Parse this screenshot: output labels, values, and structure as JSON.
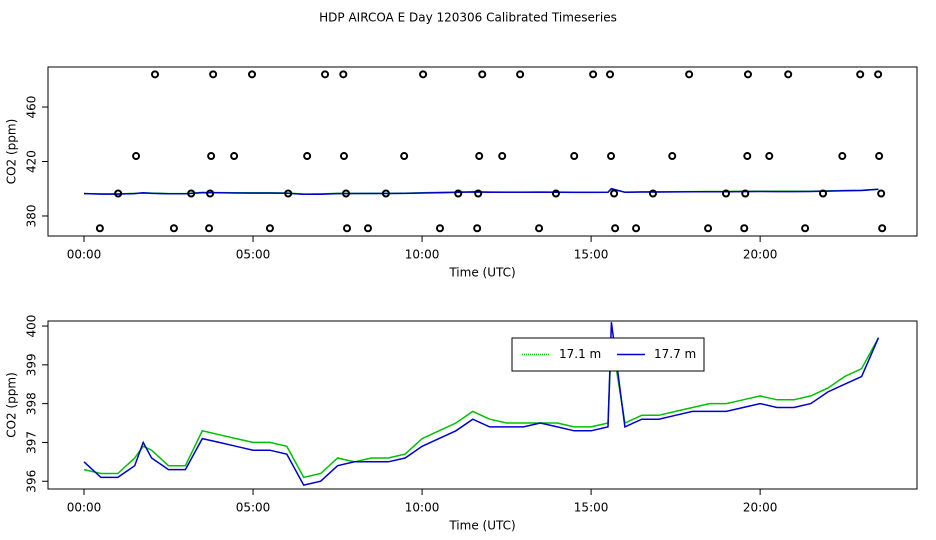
{
  "chart_data": [
    {
      "type": "scatter",
      "title": "HDP AIRCOA E  Day 120306  Calibrated Timeseries",
      "xlabel": "Time (UTC)",
      "ylabel": "CO2 (ppm)",
      "xlim": [
        -1.065,
        24.64
      ],
      "xticks": [
        {
          "value": 0,
          "label": "00:00"
        },
        {
          "value": 5,
          "label": "05:00"
        },
        {
          "value": 10,
          "label": "10:00"
        },
        {
          "value": 15,
          "label": "15:00"
        },
        {
          "value": 20,
          "label": "20:00"
        }
      ],
      "ylim": [
        365.3,
        489.4
      ],
      "yticks": [
        380,
        420,
        460
      ],
      "points": {
        "color": "#000000",
        "x": [
          2.1,
          3.82,
          4.97,
          7.13,
          7.67,
          10.03,
          11.78,
          12.9,
          15.06,
          15.56,
          17.9,
          19.64,
          20.83,
          22.96,
          23.49,
          1.54,
          3.76,
          4.44,
          6.6,
          7.69,
          9.47,
          11.69,
          12.37,
          14.5,
          15.59,
          17.4,
          19.62,
          20.27,
          22.43,
          23.52,
          1.01,
          3.17,
          3.73,
          6.04,
          7.75,
          8.93,
          11.07,
          11.66,
          13.96,
          15.68,
          16.83,
          18.99,
          19.56,
          21.86,
          23.58,
          0.47,
          2.66,
          3.7,
          5.5,
          7.78,
          8.4,
          10.53,
          11.63,
          13.46,
          15.71,
          16.33,
          18.46,
          19.53,
          21.33,
          23.61
        ],
        "y": [
          484,
          484,
          484,
          484,
          484,
          484,
          484,
          484,
          484,
          484,
          484,
          484,
          484,
          484,
          484,
          424,
          424,
          424,
          424,
          424,
          424,
          424,
          424,
          424,
          424,
          424,
          424,
          424,
          424,
          424,
          396.5,
          396.5,
          396.5,
          396.5,
          396.5,
          396.5,
          396.5,
          396.5,
          396.5,
          396.5,
          396.5,
          396.5,
          396.5,
          396.5,
          396.5,
          371,
          371,
          371,
          371,
          371,
          371,
          371,
          371,
          371,
          371,
          371,
          371,
          371,
          371,
          371
        ]
      },
      "x": [
        0,
        0.5,
        1,
        1.5,
        1.75,
        2,
        2.5,
        3,
        3.5,
        4,
        4.5,
        5,
        5.5,
        6,
        6.5,
        7,
        7.5,
        8,
        8.5,
        9,
        9.5,
        10,
        10.5,
        11,
        11.5,
        12,
        12.5,
        13,
        13.5,
        14,
        14.5,
        15,
        15.5,
        15.6,
        16,
        16.5,
        17,
        17.5,
        18,
        18.5,
        19,
        19.5,
        20,
        20.5,
        21,
        21.5,
        22,
        22.5,
        23,
        23.5
      ],
      "series": [
        {
          "color": "#00c000",
          "values": [
            396.3,
            396.2,
            396.2,
            396.6,
            396.9,
            396.8,
            396.4,
            396.4,
            397.3,
            397.2,
            397.1,
            397.0,
            397.0,
            396.9,
            396.1,
            396.2,
            396.6,
            396.5,
            396.6,
            396.6,
            396.7,
            397.1,
            397.3,
            397.5,
            397.8,
            397.6,
            397.5,
            397.5,
            397.5,
            397.5,
            397.4,
            397.4,
            397.5,
            399.7,
            397.5,
            397.7,
            397.7,
            397.8,
            397.9,
            398.0,
            398.0,
            398.1,
            398.2,
            398.1,
            398.1,
            398.2,
            398.4,
            398.7,
            398.9,
            399.7
          ]
        },
        {
          "color": "#0000cc",
          "values": [
            396.5,
            396.1,
            396.1,
            396.4,
            397.0,
            396.6,
            396.3,
            396.3,
            397.1,
            397.0,
            396.9,
            396.8,
            396.8,
            396.7,
            395.9,
            396.0,
            396.4,
            396.5,
            396.5,
            396.5,
            396.6,
            396.9,
            397.1,
            397.3,
            397.6,
            397.4,
            397.4,
            397.4,
            397.5,
            397.4,
            397.3,
            397.3,
            397.4,
            400.1,
            397.4,
            397.6,
            397.6,
            397.7,
            397.8,
            397.8,
            397.8,
            397.9,
            398.0,
            397.9,
            397.9,
            398.0,
            398.3,
            398.5,
            398.7,
            399.7
          ]
        }
      ]
    },
    {
      "type": "line",
      "xlabel": "Time (UTC)",
      "ylabel": "CO2 (ppm)",
      "legend": "top",
      "xlim": [
        -1.065,
        24.64
      ],
      "xticks": [
        {
          "value": 0,
          "label": "00:00"
        },
        {
          "value": 5,
          "label": "05:00"
        },
        {
          "value": 10,
          "label": "10:00"
        },
        {
          "value": 15,
          "label": "15:00"
        },
        {
          "value": 20,
          "label": "20:00"
        }
      ],
      "ylim": [
        395.8,
        400.13
      ],
      "yticks": [
        396,
        397,
        398,
        399,
        400
      ],
      "x": [
        0,
        0.5,
        1,
        1.5,
        1.75,
        2,
        2.5,
        3,
        3.5,
        4,
        4.5,
        5,
        5.5,
        6,
        6.5,
        7,
        7.5,
        8,
        8.5,
        9,
        9.5,
        10,
        10.5,
        11,
        11.5,
        12,
        12.5,
        13,
        13.5,
        14,
        14.5,
        15,
        15.5,
        15.6,
        16,
        16.5,
        17,
        17.5,
        18,
        18.5,
        19,
        19.5,
        20,
        20.5,
        21,
        21.5,
        22,
        22.5,
        23,
        23.5
      ],
      "series": [
        {
          "name": "17.1 m",
          "color": "#00c000",
          "values": [
            396.3,
            396.2,
            396.2,
            396.6,
            396.9,
            396.8,
            396.4,
            396.4,
            397.3,
            397.2,
            397.1,
            397.0,
            397.0,
            396.9,
            396.1,
            396.2,
            396.6,
            396.5,
            396.6,
            396.6,
            396.7,
            397.1,
            397.3,
            397.5,
            397.8,
            397.6,
            397.5,
            397.5,
            397.5,
            397.5,
            397.4,
            397.4,
            397.5,
            399.7,
            397.5,
            397.7,
            397.7,
            397.8,
            397.9,
            398.0,
            398.0,
            398.1,
            398.2,
            398.1,
            398.1,
            398.2,
            398.4,
            398.7,
            398.9,
            399.7
          ]
        },
        {
          "name": "17.7 m",
          "color": "#0000cc",
          "values": [
            396.5,
            396.1,
            396.1,
            396.4,
            397.0,
            396.6,
            396.3,
            396.3,
            397.1,
            397.0,
            396.9,
            396.8,
            396.8,
            396.7,
            395.9,
            396.0,
            396.4,
            396.5,
            396.5,
            396.5,
            396.6,
            396.9,
            397.1,
            397.3,
            397.6,
            397.4,
            397.4,
            397.4,
            397.5,
            397.4,
            397.3,
            397.3,
            397.4,
            400.1,
            397.4,
            397.6,
            397.6,
            397.7,
            397.8,
            397.8,
            397.8,
            397.9,
            398.0,
            397.9,
            397.9,
            398.0,
            398.3,
            398.5,
            398.7,
            399.7
          ]
        }
      ]
    }
  ]
}
